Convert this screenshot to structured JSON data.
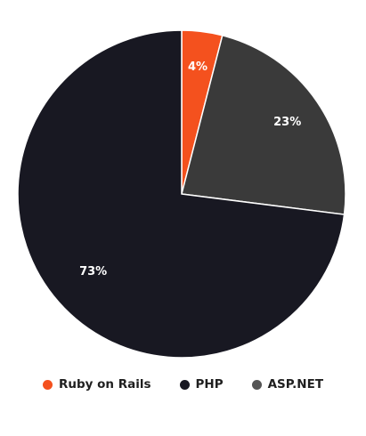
{
  "chart_data": {
    "type": "pie",
    "slices": [
      {
        "name": "Ruby on Rails",
        "value": 4,
        "label": "4%",
        "color": "#f4511e"
      },
      {
        "name": "ASP.NET",
        "value": 23,
        "label": "23%",
        "color": "#3a3a3a"
      },
      {
        "name": "PHP",
        "value": 73,
        "label": "73%",
        "color": "#181822"
      }
    ],
    "legend": {
      "placement": "bottom",
      "entries": [
        {
          "name": "Ruby on Rails",
          "color": "#f4511e"
        },
        {
          "name": "PHP",
          "color": "#181822"
        },
        {
          "name": "ASP.NET",
          "color": "#555555"
        }
      ]
    }
  }
}
